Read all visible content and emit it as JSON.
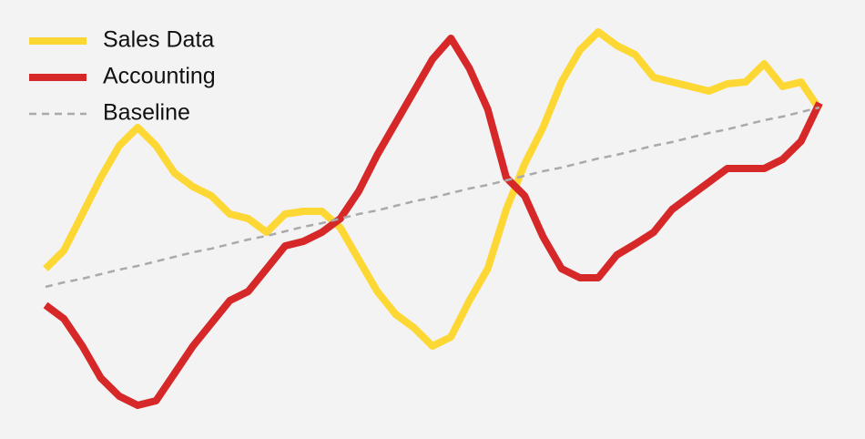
{
  "chart_data": {
    "type": "line",
    "legend": "top-left",
    "series": [
      {
        "name": "Sales Data",
        "color": "#fdd835",
        "dash": false,
        "values": [
          187,
          207,
          247,
          287,
          322,
          342,
          322,
          292,
          277,
          267,
          247,
          242,
          227,
          247,
          250,
          250,
          232,
          197,
          162,
          137,
          122,
          102,
          112,
          152,
          187,
          252,
          302,
          342,
          392,
          427,
          447,
          432,
          422,
          397,
          392,
          387,
          382,
          390,
          392,
          412,
          387,
          392,
          362
        ]
      },
      {
        "name": "Accounting",
        "color": "#d62828",
        "dash": false,
        "values": [
          147,
          132,
          102,
          67,
          47,
          37,
          42,
          72,
          102,
          127,
          152,
          162,
          187,
          212,
          217,
          227,
          242,
          272,
          312,
          347,
          382,
          417,
          440,
          407,
          362,
          287,
          267,
          222,
          187,
          177,
          177,
          202,
          214,
          227,
          252,
          267,
          282,
          297,
          297,
          297,
          307,
          327,
          369
        ]
      },
      {
        "name": "Baseline",
        "color": "#aaaaaa",
        "dash": true,
        "values": [
          167,
          172,
          176,
          181,
          186,
          190,
          195,
          200,
          205,
          209,
          214,
          219,
          223,
          228,
          233,
          237,
          242,
          247,
          251,
          256,
          261,
          265,
          270,
          275,
          279,
          284,
          289,
          294,
          298,
          303,
          308,
          312,
          317,
          322,
          326,
          331,
          336,
          340,
          345,
          350,
          354,
          359,
          364
        ]
      }
    ]
  }
}
